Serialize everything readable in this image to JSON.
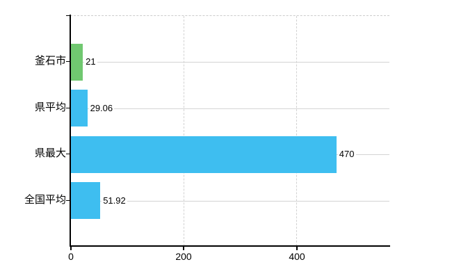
{
  "chart_data": {
    "type": "bar",
    "orientation": "horizontal",
    "title": "",
    "xlabel": "",
    "ylabel": "",
    "categories": [
      "釜石市",
      "県平均",
      "県最大",
      "全国平均"
    ],
    "values": [
      21,
      29.06,
      470,
      51.92
    ],
    "value_labels": [
      "21",
      "29.06",
      "470",
      "51.92"
    ],
    "bar_colors": [
      "#70c870",
      "#3ebef0",
      "#3ebef0",
      "#3ebef0"
    ],
    "xlim": [
      0,
      565
    ],
    "x_ticks": [
      0,
      200,
      400
    ],
    "x_tick_labels": [
      "0",
      "200",
      "400"
    ],
    "grid": true,
    "legend": "none"
  },
  "colors": {
    "background": "#ffffff",
    "axis": "#000000",
    "gridline": "#d4d4d4",
    "dashed_border": "#cccccc",
    "text": "#000000",
    "green_bar": "#70c870",
    "blue_bar": "#3ebef0"
  }
}
